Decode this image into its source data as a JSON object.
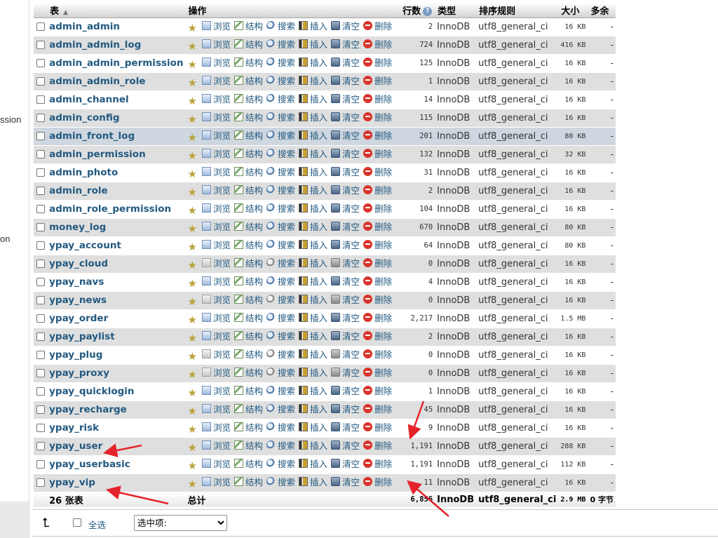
{
  "left_fragments": [
    "ssion",
    "on"
  ],
  "headers": {
    "table": "表",
    "ops": "操作",
    "rows": "行数",
    "type": "类型",
    "collation": "排序规则",
    "size": "大小",
    "overhead": "多余"
  },
  "ops_labels": {
    "browse": "浏览",
    "structure": "结构",
    "search": "搜索",
    "insert": "插入",
    "empty": "清空",
    "drop": "删除"
  },
  "tables": [
    {
      "name": "admin_admin",
      "rows": "2",
      "engine": "InnoDB",
      "collation": "utf8_general_ci",
      "size": "16 KB",
      "overhead": "-"
    },
    {
      "name": "admin_admin_log",
      "rows": "724",
      "engine": "InnoDB",
      "collation": "utf8_general_ci",
      "size": "416 KB",
      "overhead": "-"
    },
    {
      "name": "admin_admin_permission",
      "rows": "125",
      "engine": "InnoDB",
      "collation": "utf8_general_ci",
      "size": "16 KB",
      "overhead": "-"
    },
    {
      "name": "admin_admin_role",
      "rows": "1",
      "engine": "InnoDB",
      "collation": "utf8_general_ci",
      "size": "16 KB",
      "overhead": "-"
    },
    {
      "name": "admin_channel",
      "rows": "14",
      "engine": "InnoDB",
      "collation": "utf8_general_ci",
      "size": "16 KB",
      "overhead": "-"
    },
    {
      "name": "admin_config",
      "rows": "115",
      "engine": "InnoDB",
      "collation": "utf8_general_ci",
      "size": "16 KB",
      "overhead": "-"
    },
    {
      "name": "admin_front_log",
      "rows": "201",
      "engine": "InnoDB",
      "collation": "utf8_general_ci",
      "size": "80 KB",
      "overhead": "-"
    },
    {
      "name": "admin_permission",
      "rows": "132",
      "engine": "InnoDB",
      "collation": "utf8_general_ci",
      "size": "32 KB",
      "overhead": "-"
    },
    {
      "name": "admin_photo",
      "rows": "31",
      "engine": "InnoDB",
      "collation": "utf8_general_ci",
      "size": "16 KB",
      "overhead": "-"
    },
    {
      "name": "admin_role",
      "rows": "2",
      "engine": "InnoDB",
      "collation": "utf8_general_ci",
      "size": "16 KB",
      "overhead": "-"
    },
    {
      "name": "admin_role_permission",
      "rows": "104",
      "engine": "InnoDB",
      "collation": "utf8_general_ci",
      "size": "16 KB",
      "overhead": "-"
    },
    {
      "name": "money_log",
      "rows": "670",
      "engine": "InnoDB",
      "collation": "utf8_general_ci",
      "size": "80 KB",
      "overhead": "-"
    },
    {
      "name": "ypay_account",
      "rows": "64",
      "engine": "InnoDB",
      "collation": "utf8_general_ci",
      "size": "80 KB",
      "overhead": "-"
    },
    {
      "name": "ypay_cloud",
      "rows": "0",
      "engine": "InnoDB",
      "collation": "utf8_general_ci",
      "size": "16 KB",
      "overhead": "-"
    },
    {
      "name": "ypay_navs",
      "rows": "4",
      "engine": "InnoDB",
      "collation": "utf8_general_ci",
      "size": "16 KB",
      "overhead": "-"
    },
    {
      "name": "ypay_news",
      "rows": "0",
      "engine": "InnoDB",
      "collation": "utf8_general_ci",
      "size": "16 KB",
      "overhead": "-"
    },
    {
      "name": "ypay_order",
      "rows": "2,217",
      "engine": "InnoDB",
      "collation": "utf8_general_ci",
      "size": "1.5 MB",
      "overhead": "-"
    },
    {
      "name": "ypay_paylist",
      "rows": "2",
      "engine": "InnoDB",
      "collation": "utf8_general_ci",
      "size": "16 KB",
      "overhead": "-"
    },
    {
      "name": "ypay_plug",
      "rows": "0",
      "engine": "InnoDB",
      "collation": "utf8_general_ci",
      "size": "16 KB",
      "overhead": "-"
    },
    {
      "name": "ypay_proxy",
      "rows": "0",
      "engine": "InnoDB",
      "collation": "utf8_general_ci",
      "size": "16 KB",
      "overhead": "-"
    },
    {
      "name": "ypay_quicklogin",
      "rows": "1",
      "engine": "InnoDB",
      "collation": "utf8_general_ci",
      "size": "16 KB",
      "overhead": "-"
    },
    {
      "name": "ypay_recharge",
      "rows": "45",
      "engine": "InnoDB",
      "collation": "utf8_general_ci",
      "size": "16 KB",
      "overhead": "-"
    },
    {
      "name": "ypay_risk",
      "rows": "9",
      "engine": "InnoDB",
      "collation": "utf8_general_ci",
      "size": "16 KB",
      "overhead": "-"
    },
    {
      "name": "ypay_user",
      "rows": "1,191",
      "engine": "InnoDB",
      "collation": "utf8_general_ci",
      "size": "288 KB",
      "overhead": "-"
    },
    {
      "name": "ypay_userbasic",
      "rows": "1,191",
      "engine": "InnoDB",
      "collation": "utf8_general_ci",
      "size": "112 KB",
      "overhead": "-"
    },
    {
      "name": "ypay_vip",
      "rows": "11",
      "engine": "InnoDB",
      "collation": "utf8_general_ci",
      "size": "16 KB",
      "overhead": "-"
    }
  ],
  "summary": {
    "count": "26 张表",
    "label": "总计",
    "rows": "6,856",
    "engine": "InnoDB",
    "collation": "utf8_general_ci",
    "size": "2.9 MB",
    "overhead": "0 字节"
  },
  "footer": {
    "check_all": "全选",
    "with_selected": "选中项:"
  },
  "colors": {
    "link": "#235a81",
    "row_even": "#dfdfdf",
    "row_hover": "#ced6df",
    "annotation_arrow": "#e5232a"
  }
}
